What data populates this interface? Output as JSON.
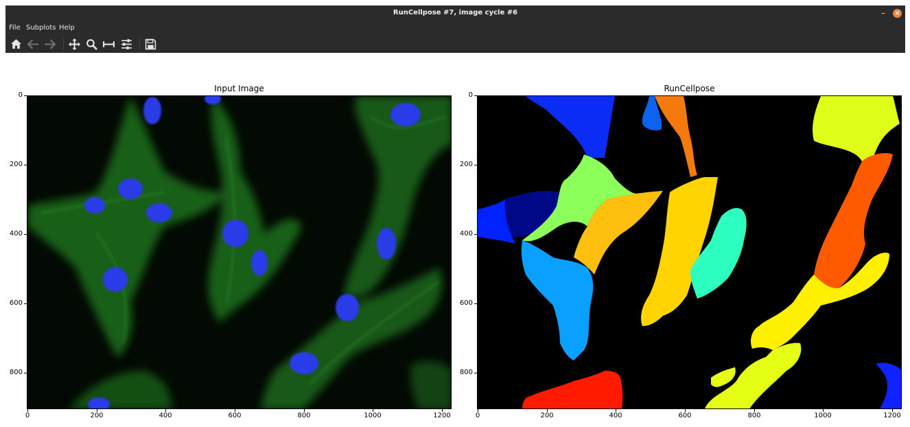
{
  "window": {
    "title": "RunCellpose #7, image cycle #6",
    "minimize_glyph": "–",
    "close_glyph": "×",
    "accent_close": "#e9843e"
  },
  "menu": {
    "items": [
      "File",
      "Subplots",
      "Help"
    ]
  },
  "toolbar": {
    "icons": [
      "home-icon",
      "back-arrow-icon",
      "forward-arrow-icon",
      "pan-move-icon",
      "zoom-magnifier-icon",
      "configure-subplots-icon",
      "edit-axis-icon",
      "save-disk-icon"
    ]
  },
  "plots": {
    "left": {
      "title": "Input Image",
      "x_ticks": [
        "0",
        "200",
        "400",
        "600",
        "800",
        "1000",
        "1200"
      ],
      "y_ticks": [
        "0",
        "200",
        "400",
        "600",
        "800"
      ]
    },
    "right": {
      "title": "RunCellpose",
      "x_ticks": [
        "0",
        "200",
        "400",
        "600",
        "800",
        "1000",
        "1200"
      ],
      "y_ticks": [
        "0",
        "200",
        "400",
        "600",
        "800"
      ]
    }
  },
  "colors": {
    "chrome": "#2b2b2b",
    "nucleus": "#2a3be8",
    "cytoplasm": "#1f8a1f",
    "mask_background": "#000000"
  }
}
